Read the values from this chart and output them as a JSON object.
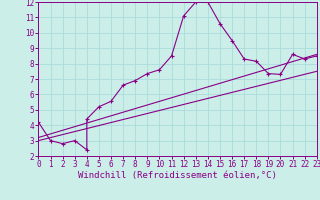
{
  "xlabel": "Windchill (Refroidissement éolien,°C)",
  "bg_color": "#cceee8",
  "grid_color": "#aaddda",
  "line_color": "#880088",
  "xlim": [
    0,
    23
  ],
  "ylim": [
    2,
    12
  ],
  "xticks": [
    0,
    1,
    2,
    3,
    4,
    5,
    6,
    7,
    8,
    9,
    10,
    11,
    12,
    13,
    14,
    15,
    16,
    17,
    18,
    19,
    20,
    21,
    22,
    23
  ],
  "yticks": [
    2,
    3,
    4,
    5,
    6,
    7,
    8,
    9,
    10,
    11,
    12
  ],
  "curve1_x": [
    0,
    1,
    2,
    3,
    4,
    4,
    5,
    6,
    7,
    8,
    9,
    10,
    11,
    12,
    13,
    14,
    15,
    16,
    17,
    18,
    19,
    20,
    21,
    22,
    23
  ],
  "curve1_y": [
    4.2,
    3.0,
    2.8,
    3.0,
    2.4,
    4.4,
    5.2,
    5.55,
    6.6,
    6.9,
    7.35,
    7.6,
    8.5,
    11.1,
    12.0,
    12.0,
    10.6,
    9.5,
    8.3,
    8.15,
    7.35,
    7.3,
    8.6,
    8.3,
    8.5
  ],
  "curve2_x": [
    0,
    23
  ],
  "curve2_y": [
    3.0,
    7.5
  ],
  "curve3_x": [
    0,
    23
  ],
  "curve3_y": [
    3.2,
    8.6
  ],
  "font_family": "monospace",
  "tick_fontsize": 5.5,
  "label_fontsize": 6.5
}
